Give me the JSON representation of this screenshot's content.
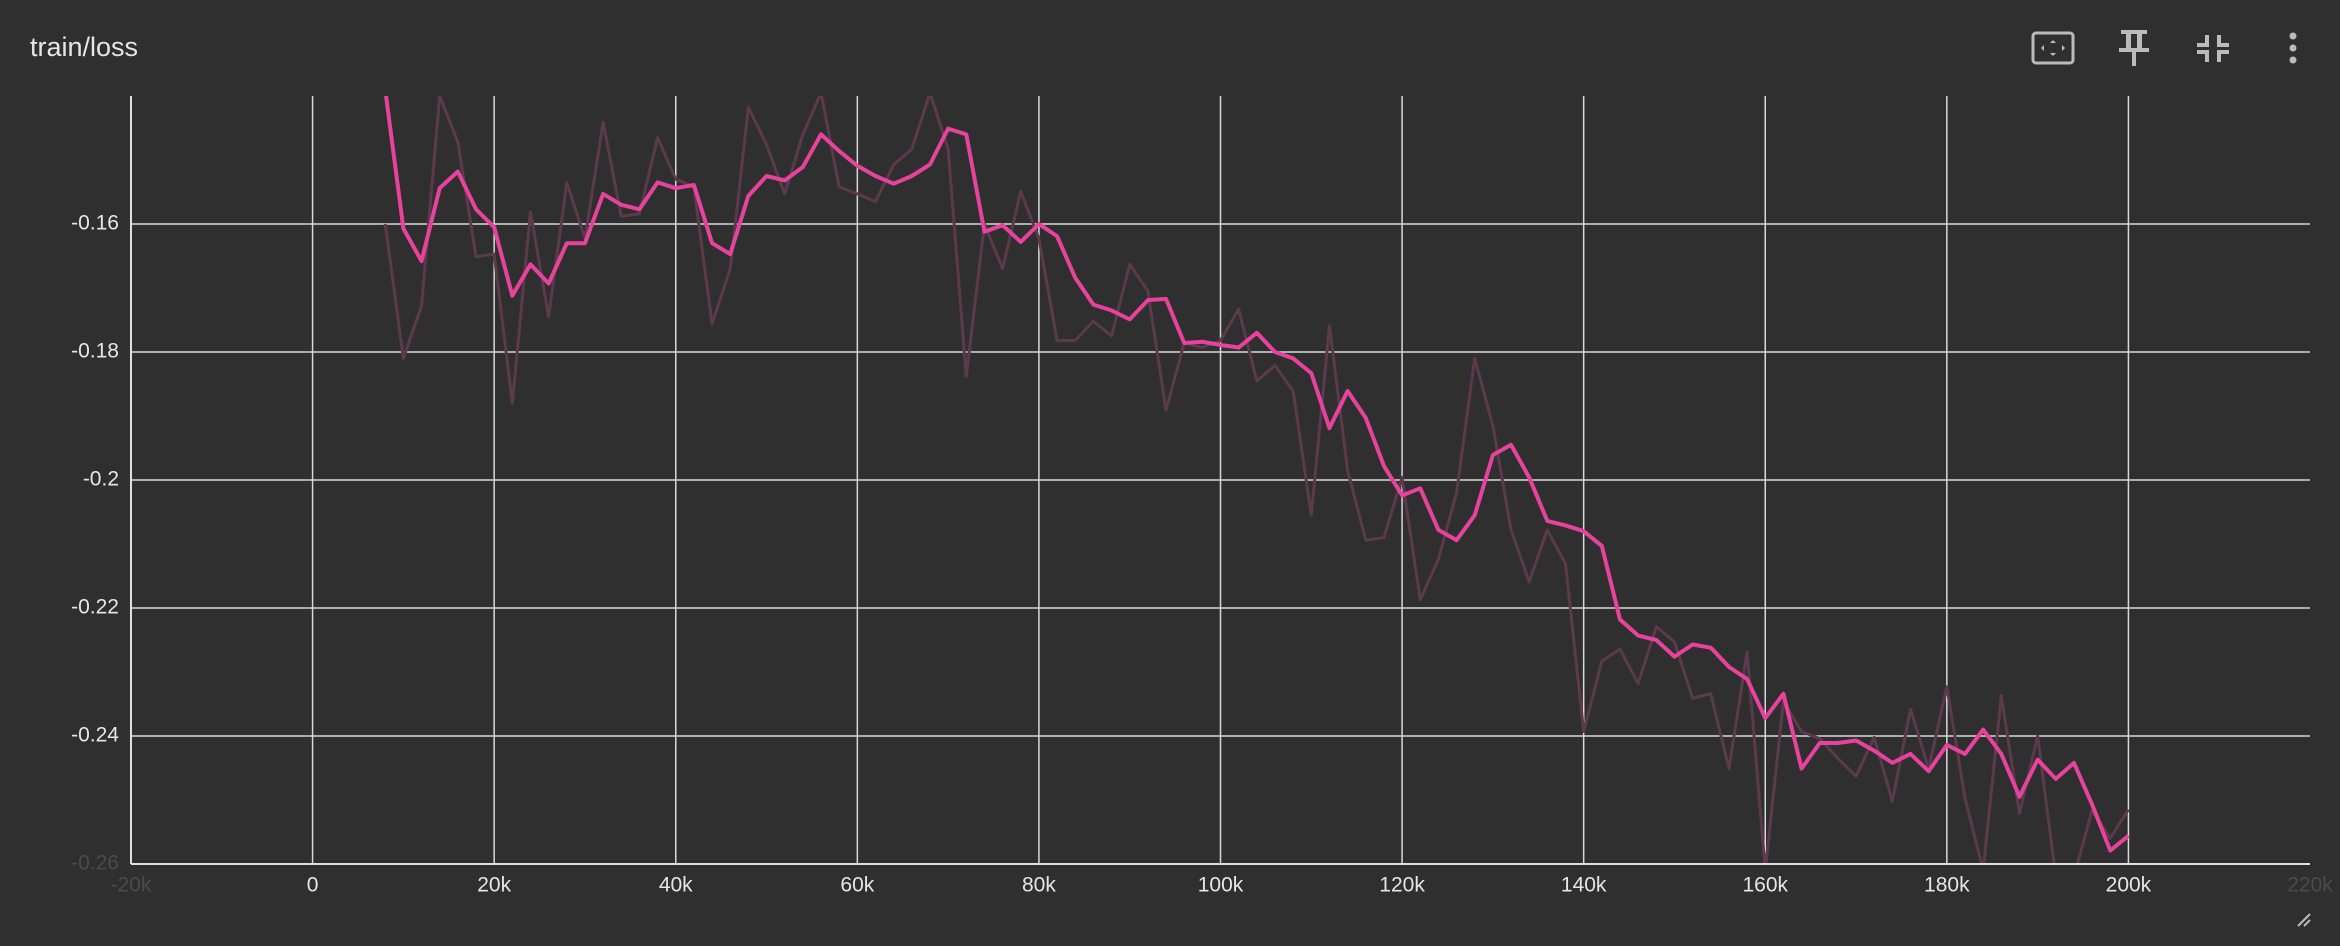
{
  "chart_data": {
    "type": "line",
    "title": "train/loss",
    "x": [
      8000,
      10000,
      12000,
      14000,
      16000,
      18000,
      20000,
      22000,
      24000,
      26000,
      28000,
      30000,
      32000,
      34000,
      36000,
      38000,
      40000,
      42000,
      44000,
      46000,
      48000,
      50000,
      52000,
      54000,
      56000,
      58000,
      60000,
      62000,
      64000,
      66000,
      68000,
      70000,
      72000,
      74000,
      76000,
      78000,
      80000,
      82000,
      84000,
      86000,
      88000,
      90000,
      92000,
      94000,
      96000,
      98000,
      100000,
      102000,
      104000,
      106000,
      108000,
      110000,
      112000,
      114000,
      116000,
      118000,
      120000,
      122000,
      124000,
      126000,
      128000,
      130000,
      132000,
      134000,
      136000,
      138000,
      140000,
      142000,
      144000,
      146000,
      148000,
      150000,
      152000,
      154000,
      156000,
      158000,
      160000,
      162000,
      164000,
      166000,
      168000,
      170000,
      172000,
      174000,
      176000,
      178000,
      180000,
      182000,
      184000,
      186000,
      188000,
      190000,
      192000,
      194000,
      196000,
      198000,
      200000
    ],
    "series": [
      {
        "color": "#5a3a4c",
        "values": [
          -0.16,
          -0.181,
          -0.1728,
          -0.14,
          -0.1472,
          -0.1651,
          -0.1647,
          -0.188,
          -0.1581,
          -0.1745,
          -0.1535,
          -0.1623,
          -0.1441,
          -0.1588,
          -0.1584,
          -0.1465,
          -0.153,
          -0.1542,
          -0.1756,
          -0.167,
          -0.1418,
          -0.1476,
          -0.1553,
          -0.146,
          -0.1395,
          -0.1542,
          -0.1553,
          -0.1565,
          -0.1507,
          -0.1483,
          -0.1395,
          -0.1483,
          -0.1838,
          -0.16,
          -0.167,
          -0.1549,
          -0.1623,
          -0.1782,
          -0.1782,
          -0.1752,
          -0.1775,
          -0.1663,
          -0.1705,
          -0.1891,
          -0.1786,
          -0.1793,
          -0.1782,
          -0.1733,
          -0.1845,
          -0.1821,
          -0.1861,
          -0.2055,
          -0.1759,
          -0.1985,
          -0.2094,
          -0.209,
          -0.1996,
          -0.2187,
          -0.2124,
          -0.202,
          -0.181,
          -0.1915,
          -0.2078,
          -0.2159,
          -0.2078,
          -0.2131,
          -0.2393,
          -0.2283,
          -0.2264,
          -0.2318,
          -0.2229,
          -0.2253,
          -0.2341,
          -0.2334,
          -0.2451,
          -0.2269,
          -0.261,
          -0.2346,
          -0.2393,
          -0.2404,
          -0.2435,
          -0.2463,
          -0.2402,
          -0.2502,
          -0.2358,
          -0.2451,
          -0.2323,
          -0.2497,
          -0.261,
          -0.2337,
          -0.2521,
          -0.24,
          -0.262,
          -0.262,
          -0.2516,
          -0.256,
          -0.2515
        ]
      },
      {
        "color": "#e7429c",
        "values": [
          -0.139,
          -0.1607,
          -0.1658,
          -0.1544,
          -0.1518,
          -0.1577,
          -0.1605,
          -0.1712,
          -0.1663,
          -0.1693,
          -0.163,
          -0.163,
          -0.1553,
          -0.157,
          -0.1577,
          -0.1535,
          -0.1544,
          -0.1539,
          -0.163,
          -0.1647,
          -0.1556,
          -0.1525,
          -0.1532,
          -0.1511,
          -0.146,
          -0.1486,
          -0.1509,
          -0.1525,
          -0.1537,
          -0.1525,
          -0.1507,
          -0.1451,
          -0.146,
          -0.1612,
          -0.1602,
          -0.1628,
          -0.16,
          -0.1619,
          -0.1684,
          -0.1726,
          -0.1735,
          -0.1749,
          -0.1719,
          -0.1717,
          -0.1786,
          -0.1784,
          -0.1789,
          -0.1793,
          -0.177,
          -0.18,
          -0.181,
          -0.1833,
          -0.1919,
          -0.1861,
          -0.1903,
          -0.1978,
          -0.2024,
          -0.2013,
          -0.2078,
          -0.2094,
          -0.2055,
          -0.1961,
          -0.1945,
          -0.1996,
          -0.2064,
          -0.2071,
          -0.208,
          -0.2103,
          -0.2218,
          -0.2243,
          -0.225,
          -0.2276,
          -0.2257,
          -0.2262,
          -0.2292,
          -0.2311,
          -0.2372,
          -0.2334,
          -0.2451,
          -0.2411,
          -0.2411,
          -0.2407,
          -0.2423,
          -0.2442,
          -0.2428,
          -0.2455,
          -0.2414,
          -0.2428,
          -0.239,
          -0.2428,
          -0.2495,
          -0.2437,
          -0.2467,
          -0.2442,
          -0.2507,
          -0.2579,
          -0.2556
        ]
      }
    ],
    "xlim": [
      -20000,
      220000
    ],
    "xticks": [
      {
        "value": -20000,
        "label": "-20k"
      },
      0,
      {
        "value": 20000,
        "label": "20k"
      },
      {
        "value": 40000,
        "label": "40k"
      },
      {
        "value": 60000,
        "label": "60k"
      },
      {
        "value": 80000,
        "label": "80k"
      },
      {
        "value": 100000,
        "label": "100k"
      },
      {
        "value": 120000,
        "label": "120k"
      },
      {
        "value": 140000,
        "label": "140k"
      },
      {
        "value": 160000,
        "label": "160k"
      },
      {
        "value": 180000,
        "label": "180k"
      },
      {
        "value": 200000,
        "label": "200k"
      },
      {
        "value": 220000,
        "label": "220k"
      }
    ],
    "ylim": [
      -0.26,
      -0.14
    ],
    "yticks": [
      -0.26,
      -0.24,
      -0.22,
      -0.2,
      -0.18,
      -0.16
    ],
    "grid": true
  }
}
